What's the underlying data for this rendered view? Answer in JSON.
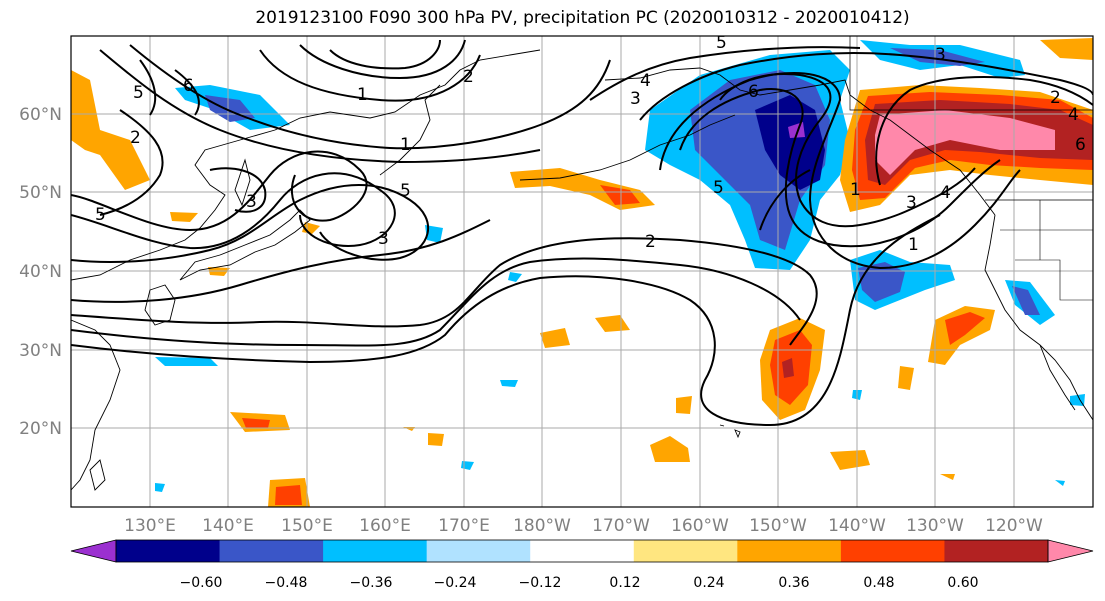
{
  "title": "2019123100 F090 300 hPa PV, precipitation PC (2020010312 - 2020010412)",
  "lat_labels": [
    "60°N",
    "50°N",
    "40°N",
    "30°N",
    "20°N"
  ],
  "lon_labels": [
    "130°E",
    "140°E",
    "150°E",
    "160°E",
    "170°E",
    "180°W",
    "170°W",
    "160°W",
    "150°W",
    "140°W",
    "130°W",
    "120°W"
  ],
  "pv_contour_labels": [
    "1",
    "2",
    "3",
    "4",
    "5",
    "6",
    "1",
    "2",
    "3",
    "5",
    "6",
    "5",
    "5",
    "3",
    "2",
    "1",
    "3",
    "2",
    "3",
    "4",
    "5",
    "4",
    "1",
    "6"
  ],
  "colorbar": {
    "tick_labels": [
      "−0.60",
      "−0.48",
      "−0.36",
      "−0.24",
      "−0.12",
      "0.12",
      "0.24",
      "0.36",
      "0.48",
      "0.60"
    ],
    "colors": [
      "#9b30d0",
      "#00008b",
      "#3a56c8",
      "#00bfff",
      "#b0e2ff",
      "#ffffff",
      "#ffe680",
      "#ffa500",
      "#ff4000",
      "#b22222",
      "#ff88aa"
    ]
  }
}
